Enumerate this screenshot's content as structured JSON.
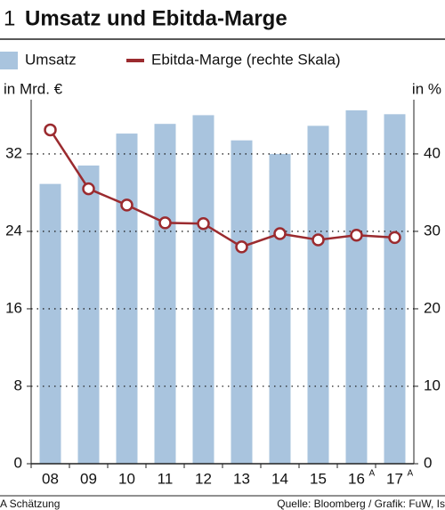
{
  "chart_data": {
    "type": "bar_line",
    "number": "1",
    "title": "Umsatz und Ebitda-Marge",
    "y_label": "in Mrd. €",
    "y2_label": "in %",
    "categories": [
      "08",
      "09",
      "10",
      "11",
      "12",
      "13",
      "14",
      "15",
      "16",
      "17"
    ],
    "estimate_mark": "A",
    "estimated": [
      false,
      false,
      false,
      false,
      false,
      false,
      false,
      false,
      true,
      true
    ],
    "series": [
      {
        "name": "Umsatz",
        "color": "#a9c4de",
        "values": [
          28.9,
          30.8,
          34.1,
          35.1,
          36.0,
          33.4,
          32.0,
          34.9,
          36.5,
          36.1
        ]
      },
      {
        "name": "Ebitda-Marge (rechte Skala)",
        "color": "#9b2b2f",
        "axis": "y2",
        "values": [
          43.1,
          35.5,
          33.4,
          31.1,
          31.0,
          28.0,
          29.7,
          28.9,
          29.5,
          29.2
        ]
      }
    ],
    "ylim": [
      0,
      37.6
    ],
    "yticks": [
      0,
      8,
      16,
      24,
      32
    ],
    "y2lim": [
      0,
      47
    ],
    "y2ticks": [
      0,
      10,
      20,
      30,
      40
    ],
    "grid": true,
    "footnote": "A Schätzung",
    "source": "Quelle: Bloomberg / Grafik: FuW, Is"
  }
}
